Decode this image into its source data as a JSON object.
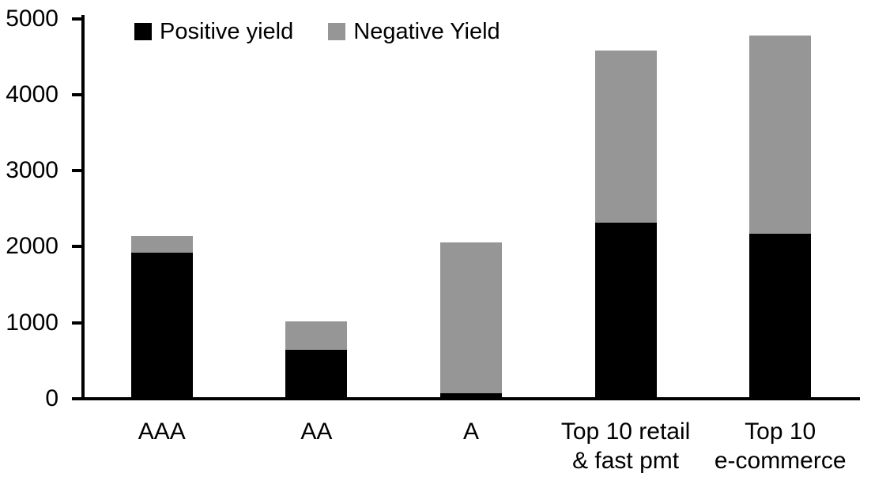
{
  "chart_data": {
    "type": "bar",
    "stacked": true,
    "title": "",
    "xlabel": "",
    "ylabel": "",
    "categories": [
      "AAA",
      "AA",
      "A",
      "Top 10 retail\n& fast pmt",
      "Top 10\ne-commerce"
    ],
    "series": [
      {
        "name": "Positive yield",
        "color": "#000000",
        "values": [
          1900,
          620,
          50,
          2290,
          2150
        ]
      },
      {
        "name": "Negative Yield",
        "color": "#969696",
        "values": [
          220,
          380,
          1990,
          2270,
          2610
        ]
      }
    ],
    "ylim": [
      0,
      5000
    ],
    "yticks": [
      0,
      1000,
      2000,
      3000,
      4000,
      5000
    ],
    "grid": false,
    "legend_position": "top"
  }
}
